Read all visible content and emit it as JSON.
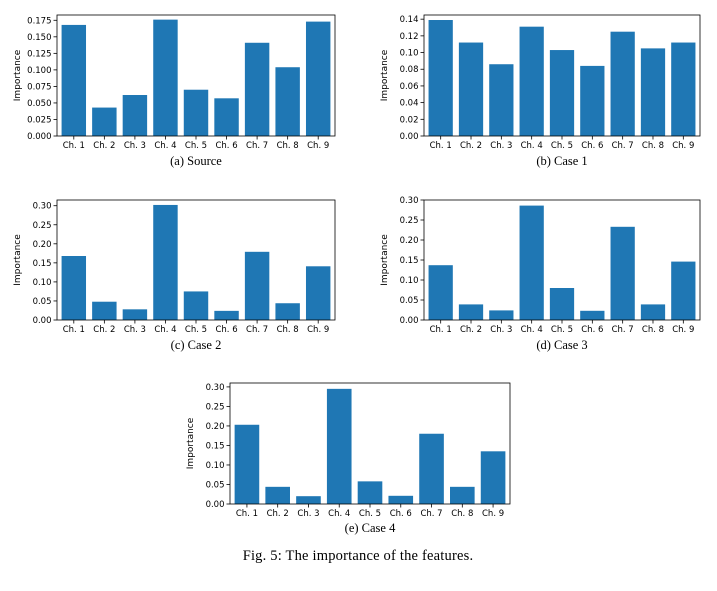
{
  "figure_caption": "Fig. 5: The importance of the features.",
  "bar_color": "#1f77b4",
  "chart_data": [
    {
      "type": "bar",
      "caption": "(a) Source",
      "ylabel": "Importance",
      "categories": [
        "Ch. 1",
        "Ch. 2",
        "Ch. 3",
        "Ch. 4",
        "Ch. 5",
        "Ch. 6",
        "Ch. 7",
        "Ch. 8",
        "Ch. 9"
      ],
      "values": [
        0.168,
        0.043,
        0.062,
        0.176,
        0.07,
        0.057,
        0.141,
        0.104,
        0.173
      ],
      "ylim": [
        0,
        0.183
      ],
      "yticks": [
        0.0,
        0.025,
        0.05,
        0.075,
        0.1,
        0.125,
        0.15,
        0.175
      ],
      "ytick_labels": [
        "0.000",
        "0.025",
        "0.050",
        "0.075",
        "0.100",
        "0.125",
        "0.150",
        "0.175"
      ]
    },
    {
      "type": "bar",
      "caption": "(b) Case 1",
      "ylabel": "Importance",
      "categories": [
        "Ch. 1",
        "Ch. 2",
        "Ch. 3",
        "Ch. 4",
        "Ch. 5",
        "Ch. 6",
        "Ch. 7",
        "Ch. 8",
        "Ch. 9"
      ],
      "values": [
        0.139,
        0.112,
        0.086,
        0.131,
        0.103,
        0.084,
        0.125,
        0.105,
        0.112
      ],
      "ylim": [
        0,
        0.145
      ],
      "yticks": [
        0.0,
        0.02,
        0.04,
        0.06,
        0.08,
        0.1,
        0.12,
        0.14
      ],
      "ytick_labels": [
        "0.00",
        "0.02",
        "0.04",
        "0.06",
        "0.08",
        "0.10",
        "0.12",
        "0.14"
      ]
    },
    {
      "type": "bar",
      "caption": "(c) Case 2",
      "ylabel": "Importance",
      "categories": [
        "Ch. 1",
        "Ch. 2",
        "Ch. 3",
        "Ch. 4",
        "Ch. 5",
        "Ch. 6",
        "Ch. 7",
        "Ch. 8",
        "Ch. 9"
      ],
      "values": [
        0.168,
        0.048,
        0.028,
        0.302,
        0.075,
        0.024,
        0.179,
        0.044,
        0.141
      ],
      "ylim": [
        0,
        0.315
      ],
      "yticks": [
        0.0,
        0.05,
        0.1,
        0.15,
        0.2,
        0.25,
        0.3
      ],
      "ytick_labels": [
        "0.00",
        "0.05",
        "0.10",
        "0.15",
        "0.20",
        "0.25",
        "0.30"
      ]
    },
    {
      "type": "bar",
      "caption": "(d) Case 3",
      "ylabel": "Importance",
      "categories": [
        "Ch. 1",
        "Ch. 2",
        "Ch. 3",
        "Ch. 4",
        "Ch. 5",
        "Ch. 6",
        "Ch. 7",
        "Ch. 8",
        "Ch. 9"
      ],
      "values": [
        0.137,
        0.039,
        0.024,
        0.286,
        0.08,
        0.023,
        0.233,
        0.039,
        0.146
      ],
      "ylim": [
        0,
        0.3
      ],
      "yticks": [
        0.0,
        0.05,
        0.1,
        0.15,
        0.2,
        0.25,
        0.3
      ],
      "ytick_labels": [
        "0.00",
        "0.05",
        "0.10",
        "0.15",
        "0.20",
        "0.25",
        "0.30"
      ]
    },
    {
      "type": "bar",
      "caption": "(e) Case 4",
      "ylabel": "Importance",
      "categories": [
        "Ch. 1",
        "Ch. 2",
        "Ch. 3",
        "Ch. 4",
        "Ch. 5",
        "Ch. 6",
        "Ch. 7",
        "Ch. 8",
        "Ch. 9"
      ],
      "values": [
        0.203,
        0.044,
        0.02,
        0.295,
        0.058,
        0.021,
        0.18,
        0.044,
        0.135
      ],
      "ylim": [
        0,
        0.31
      ],
      "yticks": [
        0.0,
        0.05,
        0.1,
        0.15,
        0.2,
        0.25,
        0.3
      ],
      "ytick_labels": [
        "0.00",
        "0.05",
        "0.10",
        "0.15",
        "0.20",
        "0.25",
        "0.30"
      ]
    }
  ]
}
